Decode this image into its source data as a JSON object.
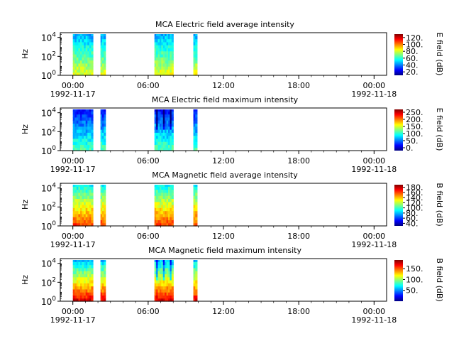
{
  "chart_data": [
    {
      "type": "heatmap",
      "title": "MCA  Electric field average intensity",
      "ylabel": "Hz",
      "yticks": [
        "10^0",
        "10^2",
        "10^4"
      ],
      "ylim_log10": [
        0,
        4.5
      ],
      "xlim_hours": [
        -1,
        25
      ],
      "xticks": [
        {
          "hour": 0,
          "time": "00:00",
          "date": "1992-11-17"
        },
        {
          "hour": 6,
          "time": "06:00",
          "date": ""
        },
        {
          "hour": 12,
          "time": "12:00",
          "date": ""
        },
        {
          "hour": 18,
          "time": "18:00",
          "date": ""
        },
        {
          "hour": 24,
          "time": "00:00",
          "date": "1992-11-18"
        }
      ],
      "colorbar": {
        "label": "E field (dB)",
        "min": 10,
        "max": 130,
        "ticks": [
          "20.",
          "40.",
          "60.",
          "80.",
          "100.",
          "120."
        ]
      },
      "data_intervals_hours": [
        [
          0.0,
          1.6
        ],
        [
          2.2,
          2.6
        ],
        [
          6.5,
          8.0
        ],
        [
          9.6,
          9.9
        ]
      ],
      "level_db": [
        45,
        82
      ],
      "spectrum": "green-yellow low frequency, cyan-blue at highest frequencies"
    },
    {
      "type": "heatmap",
      "title": "MCA  Electric field maximum intensity",
      "ylabel": "Hz",
      "yticks": [
        "10^0",
        "10^2",
        "10^4"
      ],
      "ylim_log10": [
        0,
        4.5
      ],
      "xlim_hours": [
        -1,
        25
      ],
      "xticks": [
        {
          "hour": 0,
          "time": "00:00",
          "date": "1992-11-17"
        },
        {
          "hour": 6,
          "time": "06:00",
          "date": ""
        },
        {
          "hour": 12,
          "time": "12:00",
          "date": ""
        },
        {
          "hour": 18,
          "time": "18:00",
          "date": ""
        },
        {
          "hour": 24,
          "time": "00:00",
          "date": "1992-11-18"
        }
      ],
      "colorbar": {
        "label": "E field (dB)",
        "min": -20,
        "max": 270,
        "ticks": [
          "0.",
          "50.",
          "100.",
          "150.",
          "200.",
          "250."
        ]
      },
      "data_intervals_hours": [
        [
          0.0,
          1.6
        ],
        [
          2.2,
          2.6
        ],
        [
          6.5,
          8.0
        ],
        [
          9.6,
          9.9
        ]
      ],
      "level_db": [
        20,
        110
      ],
      "spectrum": "cyan-blue throughout, dark blue at highest frequencies"
    },
    {
      "type": "heatmap",
      "title": "MCA  Magnetic field average intensity",
      "ylabel": "Hz",
      "yticks": [
        "10^0",
        "10^2",
        "10^4"
      ],
      "ylim_log10": [
        0,
        4.5
      ],
      "xlim_hours": [
        -1,
        25
      ],
      "xticks": [
        {
          "hour": 0,
          "time": "00:00",
          "date": "1992-11-17"
        },
        {
          "hour": 6,
          "time": "06:00",
          "date": ""
        },
        {
          "hour": 12,
          "time": "12:00",
          "date": ""
        },
        {
          "hour": 18,
          "time": "18:00",
          "date": ""
        },
        {
          "hour": 24,
          "time": "00:00",
          "date": "1992-11-18"
        }
      ],
      "colorbar": {
        "label": "B field (dB)",
        "min": 30,
        "max": 190,
        "ticks": [
          "40.",
          "60.",
          "80.",
          "100.",
          "120.",
          "140.",
          "160.",
          "180."
        ]
      },
      "data_intervals_hours": [
        [
          0.0,
          1.6
        ],
        [
          2.2,
          2.6
        ],
        [
          6.5,
          8.0
        ],
        [
          9.6,
          9.9
        ]
      ],
      "level_db": [
        90,
        160
      ],
      "spectrum": "yellow-orange low frequency, green mid, cyan high"
    },
    {
      "type": "heatmap",
      "title": "MCA  Magnetic field maximum intensity",
      "ylabel": "Hz",
      "yticks": [
        "10^0",
        "10^2",
        "10^4"
      ],
      "ylim_log10": [
        0,
        4.5
      ],
      "xlim_hours": [
        -1,
        25
      ],
      "xticks": [
        {
          "hour": 0,
          "time": "00:00",
          "date": "1992-11-17"
        },
        {
          "hour": 6,
          "time": "06:00",
          "date": ""
        },
        {
          "hour": 12,
          "time": "12:00",
          "date": ""
        },
        {
          "hour": 18,
          "time": "18:00",
          "date": ""
        },
        {
          "hour": 24,
          "time": "00:00",
          "date": "1992-11-18"
        }
      ],
      "colorbar": {
        "label": "B field (dB)",
        "min": 0,
        "max": 190,
        "ticks": [
          "50.",
          "100.",
          "150."
        ]
      },
      "data_intervals_hours": [
        [
          0.0,
          1.6
        ],
        [
          2.2,
          2.6
        ],
        [
          6.5,
          8.0
        ],
        [
          9.6,
          9.9
        ]
      ],
      "level_db": [
        60,
        170
      ],
      "spectrum": "yellow-orange low frequency, green-cyan high, blue streaks"
    }
  ]
}
